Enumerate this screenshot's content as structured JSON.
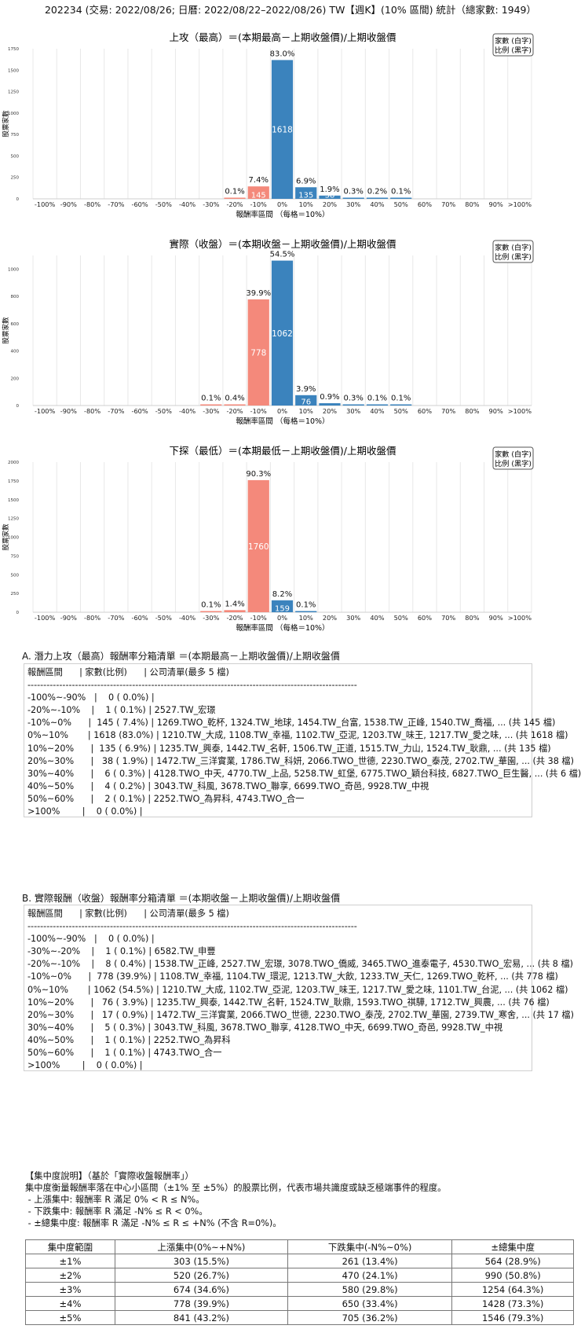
{
  "page_title": "202234 (交易: 2022/08/26; 日曆: 2022/08/22–2022/08/26) TW【週K】(10% 區間) 統計（總家數: 1949）",
  "colors": {
    "up": "#3b83bd",
    "down": "#f4897b",
    "grid": "#e8e8e8"
  },
  "legend": {
    "line1": "家數 (白字)",
    "line2": "比例 (黑字)"
  },
  "chart_data": [
    {
      "type": "bar",
      "title": "上攻（最高）＝(本期最高－上期收盤價)/上期收盤價",
      "xlabel": "報酬率區間 （每格＝10%）",
      "ylabel": "股票家數",
      "categories": [
        "-100%",
        "-90%",
        "-80%",
        "-70%",
        "-60%",
        "-50%",
        "-40%",
        "-30%",
        "-20%",
        "-10%",
        "0%",
        "10%",
        "20%",
        "30%",
        "40%",
        "50%",
        "60%",
        "70%",
        "80%",
        "90%",
        ">100%"
      ],
      "values": [
        0,
        0,
        0,
        0,
        0,
        0,
        0,
        0,
        1,
        145,
        1618,
        135,
        38,
        6,
        4,
        2,
        0,
        0,
        0,
        0,
        0
      ],
      "pct_labels": [
        "",
        "",
        "",
        "",
        "",
        "",
        "",
        "",
        "0.1%",
        "7.4%",
        "83.0%",
        "6.9%",
        "1.9%",
        "0.3%",
        "0.2%",
        "0.1%",
        "",
        "",
        "",
        "",
        ""
      ],
      "count_labels": [
        "",
        "",
        "",
        "",
        "",
        "",
        "",
        "",
        "",
        "145",
        "1618",
        "135",
        "38",
        "",
        "",
        "",
        "",
        "",
        "",
        "",
        ""
      ],
      "yticks": [
        0,
        250,
        500,
        750,
        1000,
        1250,
        1500,
        1750
      ],
      "ylim": [
        0,
        1750
      ]
    },
    {
      "type": "bar",
      "title": "實際（收盤）＝(本期收盤－上期收盤價)/上期收盤價",
      "xlabel": "報酬率區間 （每格＝10%）",
      "ylabel": "股票家數",
      "categories": [
        "-100%",
        "-90%",
        "-80%",
        "-70%",
        "-60%",
        "-50%",
        "-40%",
        "-30%",
        "-20%",
        "-10%",
        "0%",
        "10%",
        "20%",
        "30%",
        "40%",
        "50%",
        "60%",
        "70%",
        "80%",
        "90%",
        ">100%"
      ],
      "values": [
        0,
        0,
        0,
        0,
        0,
        0,
        0,
        1,
        8,
        778,
        1062,
        76,
        17,
        5,
        1,
        1,
        0,
        0,
        0,
        0,
        0
      ],
      "pct_labels": [
        "",
        "",
        "",
        "",
        "",
        "",
        "",
        "0.1%",
        "0.4%",
        "39.9%",
        "54.5%",
        "3.9%",
        "0.9%",
        "0.3%",
        "0.1%",
        "0.1%",
        "",
        "",
        "",
        "",
        ""
      ],
      "count_labels": [
        "",
        "",
        "",
        "",
        "",
        "",
        "",
        "",
        "",
        "778",
        "1062",
        "76",
        "",
        "",
        "",
        "",
        "",
        "",
        "",
        "",
        ""
      ],
      "yticks": [
        0,
        200,
        400,
        600,
        800,
        1000
      ],
      "ylim": [
        0,
        1100
      ]
    },
    {
      "type": "bar",
      "title": "下探（最低）＝(本期最低－上期收盤價)/上期收盤價",
      "xlabel": "報酬率區間 （每格＝10%）",
      "ylabel": "股票家數",
      "categories": [
        "-100%",
        "-90%",
        "-80%",
        "-70%",
        "-60%",
        "-50%",
        "-40%",
        "-30%",
        "-20%",
        "-10%",
        "0%",
        "10%",
        "20%",
        "30%",
        "40%",
        "50%",
        "60%",
        "70%",
        "80%",
        "90%",
        ">100%"
      ],
      "values": [
        0,
        0,
        0,
        0,
        0,
        0,
        0,
        1,
        28,
        1760,
        159,
        1,
        0,
        0,
        0,
        0,
        0,
        0,
        0,
        0,
        0
      ],
      "pct_labels": [
        "",
        "",
        "",
        "",
        "",
        "",
        "",
        "0.1%",
        "1.4%",
        "90.3%",
        "8.2%",
        "0.1%",
        "",
        "",
        "",
        "",
        "",
        "",
        "",
        "",
        ""
      ],
      "count_labels": [
        "",
        "",
        "",
        "",
        "",
        "",
        "",
        "",
        "",
        "1760",
        "159",
        "",
        "",
        "",
        "",
        "",
        "",
        "",
        "",
        "",
        ""
      ],
      "yticks": [
        0,
        250,
        500,
        750,
        1000,
        1250,
        1500,
        1750,
        2000
      ],
      "ylim": [
        0,
        2000
      ]
    }
  ],
  "list_a": {
    "title": "A. 潛力上攻（最高）報酬率分箱清單 ＝(本期最高－上期收盤價)/上期收盤價",
    "lines": [
      "報酬區間      | 家數(比例)      | 公司清單(最多 5 檔)",
      "--------------------------------------------------------------------------------------------------------",
      "-100%~-90%   |    0 ( 0.0%) |",
      "-20%~-10%    |    1 ( 0.1%) | 2527.TW_宏璟",
      "-10%~0%      |  145 ( 7.4%) | 1269.TWO_乾杯, 1324.TW_地球, 1454.TW_台富, 1538.TW_正峰, 1540.TW_喬福, ... (共 145 檔)",
      "0%~10%       | 1618 (83.0%) | 1210.TW_大成, 1108.TW_幸福, 1102.TW_亞泥, 1203.TW_味王, 1217.TW_愛之味, ... (共 1618 檔)",
      "10%~20%      |  135 ( 6.9%) | 1235.TW_興泰, 1442.TW_名軒, 1506.TW_正道, 1515.TW_力山, 1524.TW_耿鼎, ... (共 135 檔)",
      "20%~30%      |   38 ( 1.9%) | 1472.TW_三洋實業, 1786.TW_科妍, 2066.TWO_世德, 2230.TWO_泰茂, 2702.TW_華園, ... (共 38 檔)",
      "30%~40%      |    6 ( 0.3%) | 4128.TWO_中天, 4770.TW_上品, 5258.TW_虹堡, 6775.TWO_穎台科技, 6827.TWO_巨生醫, ... (共 6 檔)",
      "40%~50%      |    4 ( 0.2%) | 3043.TW_科風, 3678.TWO_聯享, 6699.TWO_奇邑, 9928.TW_中視",
      "50%~60%      |    2 ( 0.1%) | 2252.TWO_為昇科, 4743.TWO_合一",
      ">100%        |    0 ( 0.0%) |"
    ]
  },
  "list_b": {
    "title": "B. 實際報酬（收盤）報酬率分箱清單 ＝(本期收盤－上期收盤價)/上期收盤價",
    "lines": [
      "報酬區間      | 家數(比例)      | 公司清單(最多 5 檔)",
      "--------------------------------------------------------------------------------------------------------",
      "-100%~-90%   |    0 ( 0.0%) |",
      "-30%~-20%    |    1 ( 0.1%) | 6582.TW_申豐",
      "-20%~-10%    |    8 ( 0.4%) | 1538.TW_正峰, 2527.TW_宏璟, 3078.TWO_僑威, 3465.TWO_進泰電子, 4530.TWO_宏易, ... (共 8 檔)",
      "-10%~0%      |  778 (39.9%) | 1108.TW_幸福, 1104.TW_環泥, 1213.TW_大飲, 1233.TW_天仁, 1269.TWO_乾杯, ... (共 778 檔)",
      "0%~10%       | 1062 (54.5%) | 1210.TW_大成, 1102.TW_亞泥, 1203.TW_味王, 1217.TW_愛之味, 1101.TW_台泥, ... (共 1062 檔)",
      "10%~20%      |   76 ( 3.9%) | 1235.TW_興泰, 1442.TW_名軒, 1524.TW_耿鼎, 1593.TWO_祺驊, 1712.TW_興農, ... (共 76 檔)",
      "20%~30%      |   17 ( 0.9%) | 1472.TW_三洋實業, 2066.TWO_世德, 2230.TWO_泰茂, 2702.TW_華園, 2739.TW_寒舍, ... (共 17 檔)",
      "30%~40%      |    5 ( 0.3%) | 3043.TW_科風, 3678.TWO_聯享, 4128.TWO_中天, 6699.TWO_奇邑, 9928.TW_中視",
      "40%~50%      |    1 ( 0.1%) | 2252.TWO_為昇科",
      "50%~60%      |    1 ( 0.1%) | 4743.TWO_合一",
      ">100%        |    0 ( 0.0%) |"
    ]
  },
  "concentration": {
    "heading": "【集中度說明】（基於「實際收盤報酬率」）",
    "desc": "集中度衡量報酬率落在中心小區間（±1% 至 ±5%）的股票比例，代表市場共識度或缺乏極端事件的程度。",
    "items": [
      " - 上漲集中: 報酬率 R 滿足 0% < R ≤ N%。",
      " - 下跌集中: 報酬率 R 滿足 -N% ≤ R < 0%。",
      " - ±總集中度: 報酬率 R 滿足 -N% ≤ R ≤ +N% (不含 R=0%)。"
    ],
    "headers": [
      "集中度範圍",
      "上漲集中(0%~+N%)",
      "下跌集中(-N%~0%)",
      "±總集中度"
    ],
    "rows": [
      [
        "±1%",
        "303 (15.5%)",
        "261 (13.4%)",
        "564 (28.9%)"
      ],
      [
        "±2%",
        "520 (26.7%)",
        "470 (24.1%)",
        "990 (50.8%)"
      ],
      [
        "±3%",
        "674 (34.6%)",
        "580 (29.8%)",
        "1254 (64.3%)"
      ],
      [
        "±4%",
        "778 (39.9%)",
        "650 (33.4%)",
        "1428 (73.3%)"
      ],
      [
        "±5%",
        "841 (43.2%)",
        "705 (36.2%)",
        "1546 (79.3%)"
      ]
    ]
  }
}
